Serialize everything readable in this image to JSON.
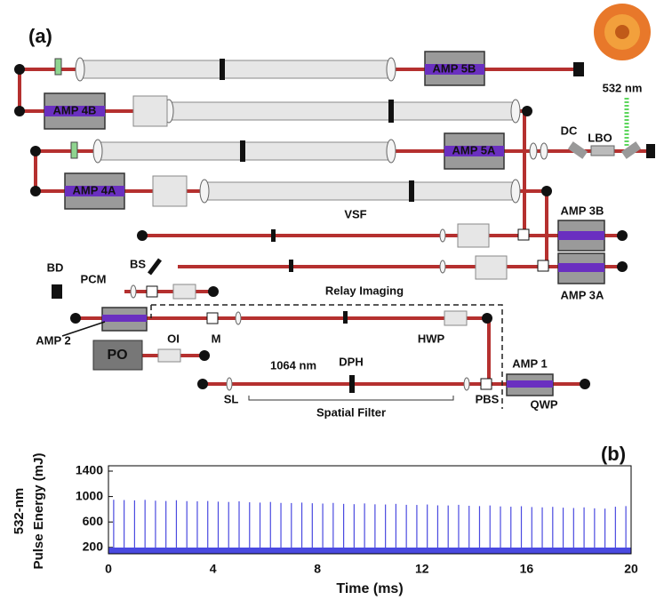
{
  "diagram": {
    "panel_label": "(a)",
    "amp_5b": "AMP 5B",
    "amp_4b": "AMP 4B",
    "amp_5a": "AMP 5A",
    "amp_4a": "AMP 4A",
    "wavelength_532": "532 nm",
    "dc": "DC",
    "lbo": "LBO",
    "vsf": "VSF",
    "amp_3b": "AMP 3B",
    "amp_3a": "AMP 3A",
    "bd": "BD",
    "pcm": "PCM",
    "bs": "BS",
    "relay_imaging": "Relay Imaging",
    "amp_2": "AMP 2",
    "po": "PO",
    "oi": "OI",
    "m": "M",
    "hwp": "HWP",
    "wavelength_1064": "1064 nm",
    "dph": "DPH",
    "sl": "SL",
    "spatial_filter": "Spatial Filter",
    "pbs": "PBS",
    "amp_1": "AMP 1",
    "qwp": "QWP"
  },
  "chart_data": {
    "type": "pulse",
    "panel_label": "(b)",
    "y_label_lines": [
      "532-nm",
      "Pulse Energy (mJ)"
    ],
    "x_label": "Time (ms)",
    "color": "#4a4ae0",
    "x": [
      0.2,
      0.6,
      1,
      1.4,
      1.8,
      2.2,
      2.6,
      3,
      3.4,
      3.8,
      4.2,
      4.6,
      5,
      5.4,
      5.8,
      6.2,
      6.6,
      7,
      7.4,
      7.8,
      8.2,
      8.6,
      9,
      9.4,
      9.8,
      10.2,
      10.6,
      11,
      11.4,
      11.8,
      12.2,
      12.6,
      13,
      13.4,
      13.8,
      14.2,
      14.6,
      15,
      15.4,
      15.8,
      16.2,
      16.6,
      17,
      17.4,
      17.8,
      18.2,
      18.6,
      19,
      19.4,
      19.8
    ],
    "values": [
      950,
      945,
      940,
      948,
      935,
      930,
      942,
      928,
      925,
      930,
      920,
      915,
      925,
      910,
      905,
      915,
      900,
      898,
      905,
      895,
      890,
      900,
      885,
      880,
      892,
      878,
      875,
      885,
      870,
      868,
      875,
      862,
      860,
      870,
      855,
      850,
      860,
      845,
      840,
      848,
      835,
      830,
      838,
      825,
      820,
      830,
      815,
      810,
      840,
      850
    ],
    "xlim": [
      0,
      20
    ],
    "xticks": [
      0,
      4,
      8,
      12,
      16,
      20
    ],
    "ylim": [
      100,
      1400
    ],
    "yticks": [
      200,
      600,
      1000,
      1400
    ]
  }
}
